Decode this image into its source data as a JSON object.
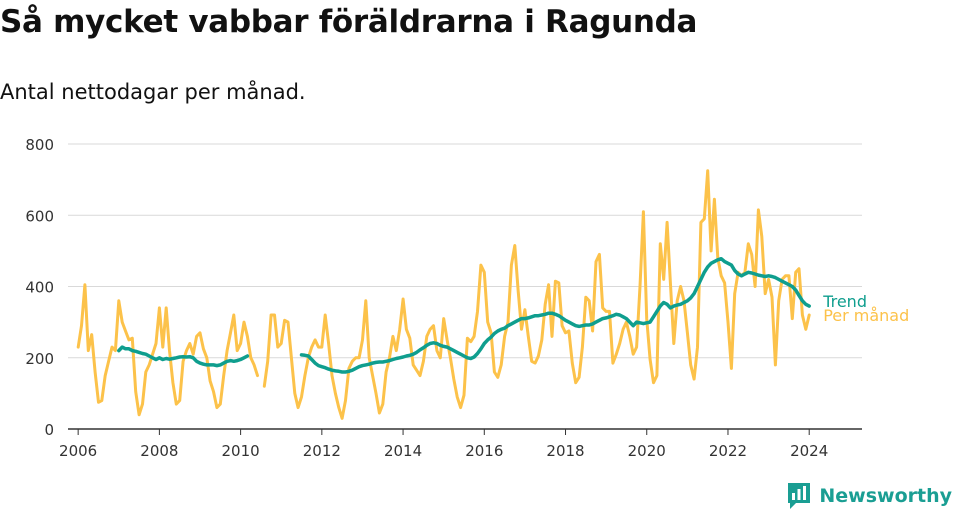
{
  "header": {
    "title": "Så mycket vabbar föräldrarna i Ragunda",
    "subtitle": "Antal nettodagar per månad."
  },
  "brand": {
    "name": "Newsworthy",
    "icon": "bar-chart-logo-icon"
  },
  "colors": {
    "monthly": "#fcc24a",
    "trend": "#0f9e8e",
    "grid": "#d9d9d9",
    "axis": "#333333",
    "brand": "#1a9e93"
  },
  "chart_data": {
    "type": "line",
    "title": "Så mycket vabbar föräldrarna i Ragunda",
    "subtitle": "Antal nettodagar per månad.",
    "xlabel": "",
    "ylabel": "",
    "xlim": [
      2005.75,
      2025.3
    ],
    "ylim": [
      0,
      800
    ],
    "x_ticks": [
      2006,
      2008,
      2010,
      2012,
      2014,
      2016,
      2018,
      2020,
      2022,
      2024
    ],
    "x_tick_labels": [
      "2006",
      "2008",
      "2010",
      "2012",
      "2014",
      "2016",
      "2018",
      "2020",
      "2022",
      "2024"
    ],
    "y_ticks": [
      0,
      200,
      400,
      600,
      800
    ],
    "y_tick_labels": [
      "0",
      "200",
      "400",
      "600",
      "800"
    ],
    "grid": true,
    "x_start": 2006.0,
    "x_step": 0.0833333,
    "series": [
      {
        "name": "Per månad",
        "label": "Per månad",
        "color": "#fcc24a",
        "values": [
          230,
          290,
          405,
          220,
          265,
          160,
          75,
          80,
          150,
          190,
          230,
          220,
          360,
          300,
          275,
          250,
          255,
          105,
          40,
          70,
          160,
          180,
          210,
          240,
          340,
          230,
          340,
          220,
          130,
          70,
          80,
          190,
          220,
          240,
          210,
          260,
          270,
          225,
          200,
          135,
          105,
          60,
          70,
          150,
          220,
          270,
          320,
          220,
          240,
          300,
          260,
          200,
          180,
          150,
          null,
          120,
          190,
          320,
          320,
          230,
          240,
          305,
          300,
          200,
          100,
          60,
          90,
          150,
          200,
          230,
          250,
          230,
          230,
          320,
          240,
          150,
          100,
          60,
          30,
          80,
          170,
          190,
          200,
          200,
          250,
          360,
          200,
          150,
          100,
          45,
          70,
          160,
          200,
          260,
          220,
          280,
          365,
          280,
          255,
          180,
          165,
          150,
          190,
          260,
          280,
          290,
          220,
          200,
          310,
          250,
          200,
          140,
          90,
          60,
          95,
          255,
          245,
          260,
          330,
          460,
          440,
          300,
          270,
          160,
          145,
          180,
          260,
          300,
          460,
          515,
          390,
          280,
          335,
          260,
          190,
          185,
          205,
          250,
          350,
          405,
          260,
          415,
          410,
          290,
          270,
          275,
          185,
          130,
          145,
          230,
          370,
          360,
          275,
          470,
          490,
          340,
          330,
          330,
          185,
          210,
          240,
          280,
          300,
          260,
          210,
          230,
          400,
          610,
          310,
          195,
          130,
          150,
          520,
          420,
          580,
          410,
          240,
          360,
          400,
          360,
          270,
          180,
          140,
          230,
          580,
          590,
          725,
          500,
          645,
          480,
          430,
          410,
          300,
          170,
          380,
          440,
          430,
          440,
          520,
          490,
          400,
          615,
          540,
          380,
          420,
          370,
          180,
          360,
          420,
          430,
          430,
          310,
          440,
          450,
          320,
          280,
          320
        ]
      },
      {
        "name": "Trend",
        "label": "Trend",
        "color": "#0f9e8e",
        "values": [
          null,
          null,
          null,
          null,
          null,
          null,
          null,
          null,
          null,
          null,
          null,
          null,
          220,
          230,
          225,
          225,
          220,
          218,
          215,
          212,
          210,
          205,
          200,
          195,
          200,
          195,
          198,
          196,
          198,
          200,
          202,
          203,
          202,
          203,
          200,
          190,
          185,
          182,
          180,
          180,
          180,
          178,
          180,
          185,
          190,
          192,
          190,
          192,
          195,
          200,
          205,
          null,
          null,
          null,
          null,
          null,
          null,
          null,
          null,
          null,
          null,
          null,
          null,
          null,
          null,
          null,
          208,
          207,
          205,
          195,
          185,
          178,
          175,
          172,
          168,
          165,
          163,
          162,
          160,
          160,
          162,
          165,
          170,
          175,
          178,
          180,
          182,
          185,
          187,
          188,
          188,
          190,
          192,
          195,
          198,
          200,
          202,
          205,
          207,
          210,
          215,
          222,
          228,
          235,
          240,
          242,
          240,
          235,
          232,
          230,
          225,
          220,
          215,
          210,
          205,
          200,
          198,
          202,
          212,
          225,
          240,
          250,
          258,
          268,
          275,
          280,
          283,
          290,
          295,
          300,
          305,
          310,
          310,
          312,
          315,
          318,
          318,
          320,
          322,
          325,
          325,
          322,
          318,
          312,
          305,
          300,
          295,
          290,
          288,
          290,
          292,
          292,
          295,
          300,
          305,
          310,
          312,
          315,
          318,
          322,
          320,
          315,
          310,
          300,
          290,
          300,
          298,
          296,
          298,
          300,
          315,
          330,
          345,
          355,
          350,
          340,
          345,
          348,
          350,
          355,
          360,
          368,
          380,
          400,
          420,
          440,
          455,
          465,
          470,
          475,
          478,
          470,
          465,
          460,
          445,
          435,
          430,
          435,
          440,
          438,
          435,
          432,
          430,
          428,
          430,
          428,
          425,
          420,
          415,
          410,
          405,
          400,
          390,
          375,
          360,
          350,
          345
        ]
      }
    ],
    "annotations": [
      {
        "text": "Trend",
        "series": "Trend"
      },
      {
        "text": "Per månad",
        "series": "Per månad"
      }
    ]
  }
}
